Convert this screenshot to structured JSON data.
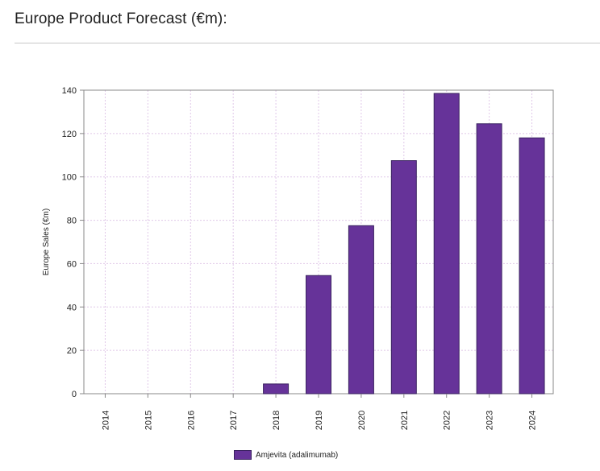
{
  "header": {
    "title": "Europe Product Forecast (€m):"
  },
  "chart_data": {
    "type": "bar",
    "title": "",
    "xlabel": "",
    "ylabel": "Europe Sales (€m)",
    "categories": [
      "2014",
      "2015",
      "2016",
      "2017",
      "2018",
      "2019",
      "2020",
      "2021",
      "2022",
      "2023",
      "2024"
    ],
    "series": [
      {
        "name": "Amjevita (adalimumab)",
        "values": [
          0,
          0,
          0,
          0,
          4.5,
          54.5,
          77.5,
          107.5,
          138.5,
          124.5,
          118
        ]
      }
    ],
    "ylim": [
      0,
      140
    ],
    "yticks": [
      0,
      20,
      40,
      60,
      80,
      100,
      120,
      140
    ],
    "grid": true,
    "legend_position": "bottom-center",
    "colors": {
      "bar_fill": "#663399",
      "bar_stroke": "#3a2360",
      "grid": "#e0c8e8"
    }
  }
}
